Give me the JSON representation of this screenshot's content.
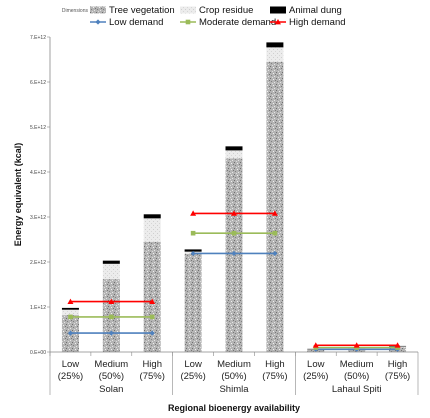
{
  "chart_data": {
    "type": "bar",
    "stacked": true,
    "xlabel": "Regional bioenergy availability",
    "ylabel": "Energy equivalent (kcal)",
    "ylim": [
      0,
      7000000000000.0
    ],
    "yticks": [
      {
        "value": 0,
        "label": "0.E+00"
      },
      {
        "value": 1000000000000.0,
        "label": "1.E+12"
      },
      {
        "value": 2000000000000.0,
        "label": "2.E+12"
      },
      {
        "value": 3000000000000.0,
        "label": "3.E+12"
      },
      {
        "value": 4000000000000.0,
        "label": "4.E+12"
      },
      {
        "value": 5000000000000.0,
        "label": "5.E+12"
      },
      {
        "value": 6000000000000.0,
        "label": "6.E+12"
      },
      {
        "value": 7000000000000.0,
        "label": "7.E+12"
      }
    ],
    "groups": [
      {
        "name": "Solan",
        "categories": [
          {
            "line1": "Low",
            "line2": "(25%)"
          },
          {
            "line1": "Medium",
            "line2": "(50%)"
          },
          {
            "line1": "High",
            "line2": "(75%)"
          }
        ]
      },
      {
        "name": "Shimla",
        "categories": [
          {
            "line1": "Low",
            "line2": "(25%)"
          },
          {
            "line1": "Medium",
            "line2": "(50%)"
          },
          {
            "line1": "High",
            "line2": "(75%)"
          }
        ]
      },
      {
        "name": "Lahaul Spiti",
        "categories": [
          {
            "line1": "Low",
            "line2": "(25%)"
          },
          {
            "line1": "Medium",
            "line2": "(50%)"
          },
          {
            "line1": "High",
            "line2": "(75%)"
          }
        ]
      }
    ],
    "series": [
      {
        "name": "Tree vegetation",
        "kind": "bar",
        "legend_prefix": "Dimensions",
        "color": "#a6a6a6",
        "values": [
          820000000000.0,
          1620000000000.0,
          2450000000000.0,
          2180000000000.0,
          4300000000000.0,
          6450000000000.0,
          50000000000.0,
          80000000000.0,
          100000000000.0
        ]
      },
      {
        "name": "Crop residue",
        "kind": "bar",
        "color": "#e0e0e0",
        "values": [
          120000000000.0,
          340000000000.0,
          520000000000.0,
          50000000000.0,
          180000000000.0,
          320000000000.0,
          15000000000.0,
          20000000000.0,
          25000000000.0
        ]
      },
      {
        "name": "Animal dung",
        "kind": "bar",
        "color": "#000000",
        "values": [
          40000000000.0,
          70000000000.0,
          90000000000.0,
          50000000000.0,
          90000000000.0,
          110000000000.0,
          5000000000.0,
          8000000000.0,
          10000000000.0
        ]
      },
      {
        "name": "Low demand",
        "kind": "line",
        "marker": "diamond",
        "color": "#4f81bd",
        "groups_values": [
          420000000000.0,
          2190000000000.0,
          60000000000.0
        ]
      },
      {
        "name": "Moderate demand",
        "kind": "line",
        "marker": "square",
        "color": "#9bbb59",
        "groups_values": [
          780000000000.0,
          2640000000000.0,
          100000000000.0
        ]
      },
      {
        "name": "High demand",
        "kind": "line",
        "marker": "triangle",
        "color": "#ff0000",
        "groups_values": [
          1120000000000.0,
          3080000000000.0,
          150000000000.0
        ]
      }
    ]
  }
}
